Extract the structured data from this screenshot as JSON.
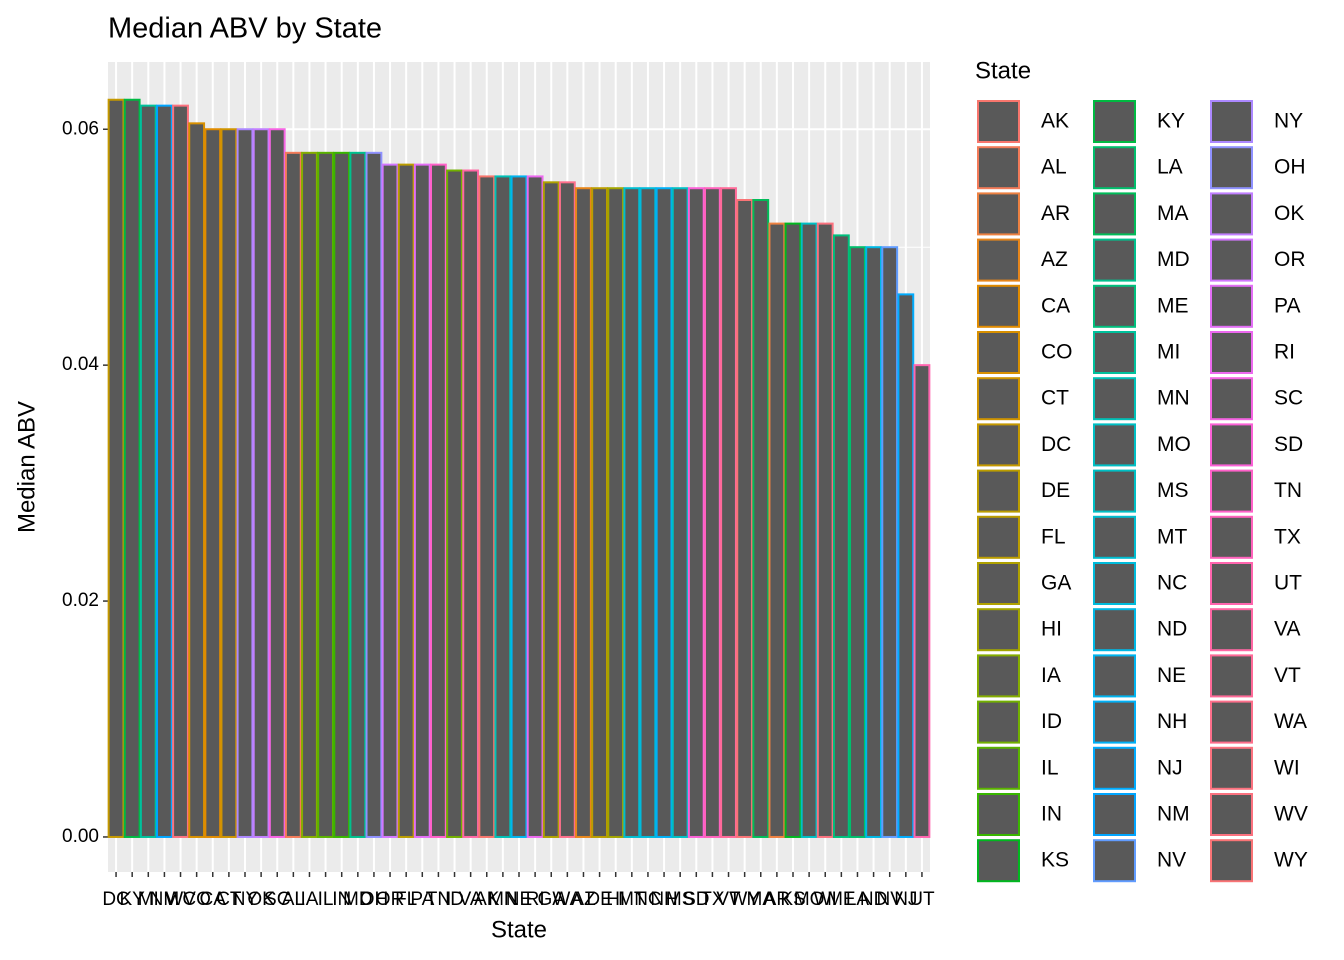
{
  "chart_data": {
    "type": "bar",
    "title": "Median ABV by State",
    "x_label": "State",
    "y_label": "Median ABV",
    "legend_title": "State",
    "categories": [
      "DC",
      "KY",
      "MI",
      "NM",
      "WV",
      "CO",
      "CA",
      "CT",
      "NY",
      "OK",
      "SC",
      "AL",
      "IA",
      "IL",
      "IN",
      "MD",
      "OH",
      "OR",
      "FL",
      "PA",
      "TN",
      "ID",
      "VA",
      "AK",
      "MN",
      "NE",
      "RI",
      "GA",
      "WA",
      "AZ",
      "DE",
      "HI",
      "MT",
      "NC",
      "NH",
      "MS",
      "SD",
      "TX",
      "VT",
      "WY",
      "MA",
      "AR",
      "KS",
      "MO",
      "WI",
      "ME",
      "LA",
      "ND",
      "NV",
      "NJ",
      "UT"
    ],
    "values": [
      0.0625,
      0.0625,
      0.062,
      0.062,
      0.062,
      0.0605,
      0.06,
      0.06,
      0.06,
      0.06,
      0.06,
      0.058,
      0.058,
      0.058,
      0.058,
      0.058,
      0.058,
      0.057,
      0.057,
      0.057,
      0.057,
      0.0565,
      0.0565,
      0.056,
      0.056,
      0.056,
      0.056,
      0.0555,
      0.0555,
      0.055,
      0.055,
      0.055,
      0.055,
      0.055,
      0.055,
      0.055,
      0.055,
      0.055,
      0.055,
      0.054,
      0.054,
      0.052,
      0.052,
      0.052,
      0.052,
      0.051,
      0.05,
      0.05,
      0.05,
      0.046,
      0.04
    ],
    "colors": [
      "#C59900",
      "#00BA42",
      "#00C19C",
      "#00A5FF",
      "#FB727F",
      "#D89000",
      "#E08B00",
      "#CF9400",
      "#AC88FF",
      "#C17FFF",
      "#F564E3",
      "#F37B59",
      "#85AD00",
      "#5BB300",
      "#39B600",
      "#00C08D",
      "#8F91FF",
      "#D277FF",
      "#BB9D00",
      "#E36EF6",
      "#FF61C9",
      "#72B000",
      "#FF67A4",
      "#F8766D",
      "#00C1B7",
      "#00B4EF",
      "#EC69EF",
      "#AFA100",
      "#FD6F8B",
      "#E7861B",
      "#BB9D00",
      "#A3A500",
      "#00BDD0",
      "#00BBDB",
      "#00B0F6",
      "#00BFC4",
      "#FB61D7",
      "#FF62BC",
      "#FF6A98",
      "#F97476",
      "#00BC59",
      "#ED8141",
      "#00B81F",
      "#00BFC4",
      "#FB727F",
      "#00BF7D",
      "#00BE6C",
      "#00B8E5",
      "#619CFF",
      "#00ABFD",
      "#FF65AE"
    ],
    "fill": "#595959",
    "ylim": [
      -0.00297,
      0.0657
    ],
    "yticks": [
      {
        "value": 0,
        "label": "0.00"
      },
      {
        "value": 0.02,
        "label": "0.02"
      },
      {
        "value": 0.04,
        "label": "0.04"
      },
      {
        "value": 0.06,
        "label": "0.06"
      }
    ],
    "grid": true
  }
}
